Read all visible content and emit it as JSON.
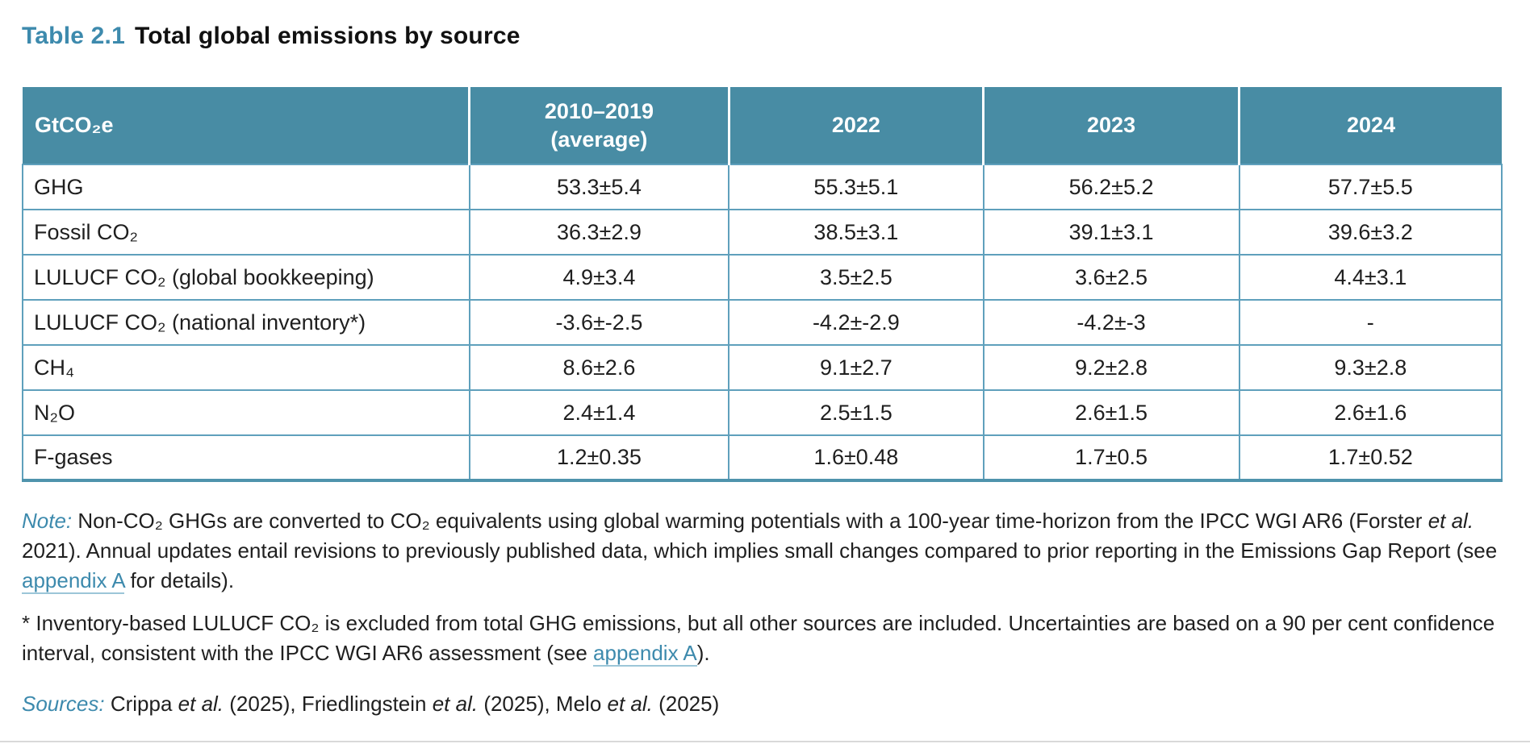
{
  "title": {
    "number": "Table 2.1",
    "caption": "Total global emissions by source"
  },
  "table": {
    "unit_header": "GtCO₂e",
    "columns": [
      {
        "label": "2010–2019\n(average)"
      },
      {
        "label": "2022"
      },
      {
        "label": "2023"
      },
      {
        "label": "2024"
      }
    ],
    "rows": [
      {
        "label": "GHG",
        "values": [
          "53.3±5.4",
          "55.3±5.1",
          "56.2±5.2",
          "57.7±5.5"
        ]
      },
      {
        "label": "Fossil CO₂",
        "values": [
          "36.3±2.9",
          "38.5±3.1",
          "39.1±3.1",
          "39.6±3.2"
        ]
      },
      {
        "label": "LULUCF CO₂ (global bookkeeping)",
        "values": [
          "4.9±3.4",
          "3.5±2.5",
          "3.6±2.5",
          "4.4±3.1"
        ]
      },
      {
        "label": "LULUCF CO₂ (national inventory*)",
        "values": [
          "-3.6±-2.5",
          "-4.2±-2.9",
          "-4.2±-3",
          "-"
        ]
      },
      {
        "label": "CH₄",
        "values": [
          "8.6±2.6",
          "9.1±2.7",
          "9.2±2.8",
          "9.3±2.8"
        ]
      },
      {
        "label": "N₂O",
        "values": [
          "2.4±1.4",
          "2.5±1.5",
          "2.6±1.5",
          "2.6±1.6"
        ]
      },
      {
        "label": "F-gases",
        "values": [
          "1.2±0.35",
          "1.6±0.48",
          "1.7±0.5",
          "1.7±0.52"
        ]
      }
    ]
  },
  "notes": [
    {
      "name": "note",
      "segments": [
        {
          "t": "Note:",
          "s": "label"
        },
        {
          "t": " Non-CO₂ GHGs are converted to CO₂ equivalents using global warming potentials with a 100-year time-horizon from the IPCC WGI AR6 (Forster ",
          "s": "normal"
        },
        {
          "t": "et al.",
          "s": "italic"
        },
        {
          "t": " 2021). Annual updates entail revisions to previously published data, which implies small changes compared to prior reporting in the Emissions Gap Report (see ",
          "s": "normal"
        },
        {
          "t": "appendix A",
          "s": "link"
        },
        {
          "t": " for details).",
          "s": "normal"
        }
      ]
    },
    {
      "name": "footnote",
      "segments": [
        {
          "t": "* Inventory-based LULUCF CO₂ is excluded from total GHG emissions, but all other sources are included. Uncertainties are based on a 90 per cent confidence interval, consistent with the IPCC WGI AR6 assessment (see ",
          "s": "normal"
        },
        {
          "t": "appendix A",
          "s": "link"
        },
        {
          "t": ").",
          "s": "normal"
        }
      ]
    },
    {
      "name": "sources",
      "segments": [
        {
          "t": "Sources:",
          "s": "label"
        },
        {
          "t": " Crippa ",
          "s": "normal"
        },
        {
          "t": "et al.",
          "s": "italic"
        },
        {
          "t": " (2025), Friedlingstein ",
          "s": "normal"
        },
        {
          "t": "et al.",
          "s": "italic"
        },
        {
          "t": " (2025), Melo ",
          "s": "normal"
        },
        {
          "t": "et al.",
          "s": "italic"
        },
        {
          "t": " (2025)",
          "s": "normal"
        }
      ]
    }
  ],
  "colors": {
    "accent": "#3D8AAD",
    "header_bg": "#488CA4",
    "table_border": "#5FA0BC",
    "table_bottom": "#4F93AC",
    "link_underline": "#9CC6D8",
    "text": "#1F1F1F"
  }
}
